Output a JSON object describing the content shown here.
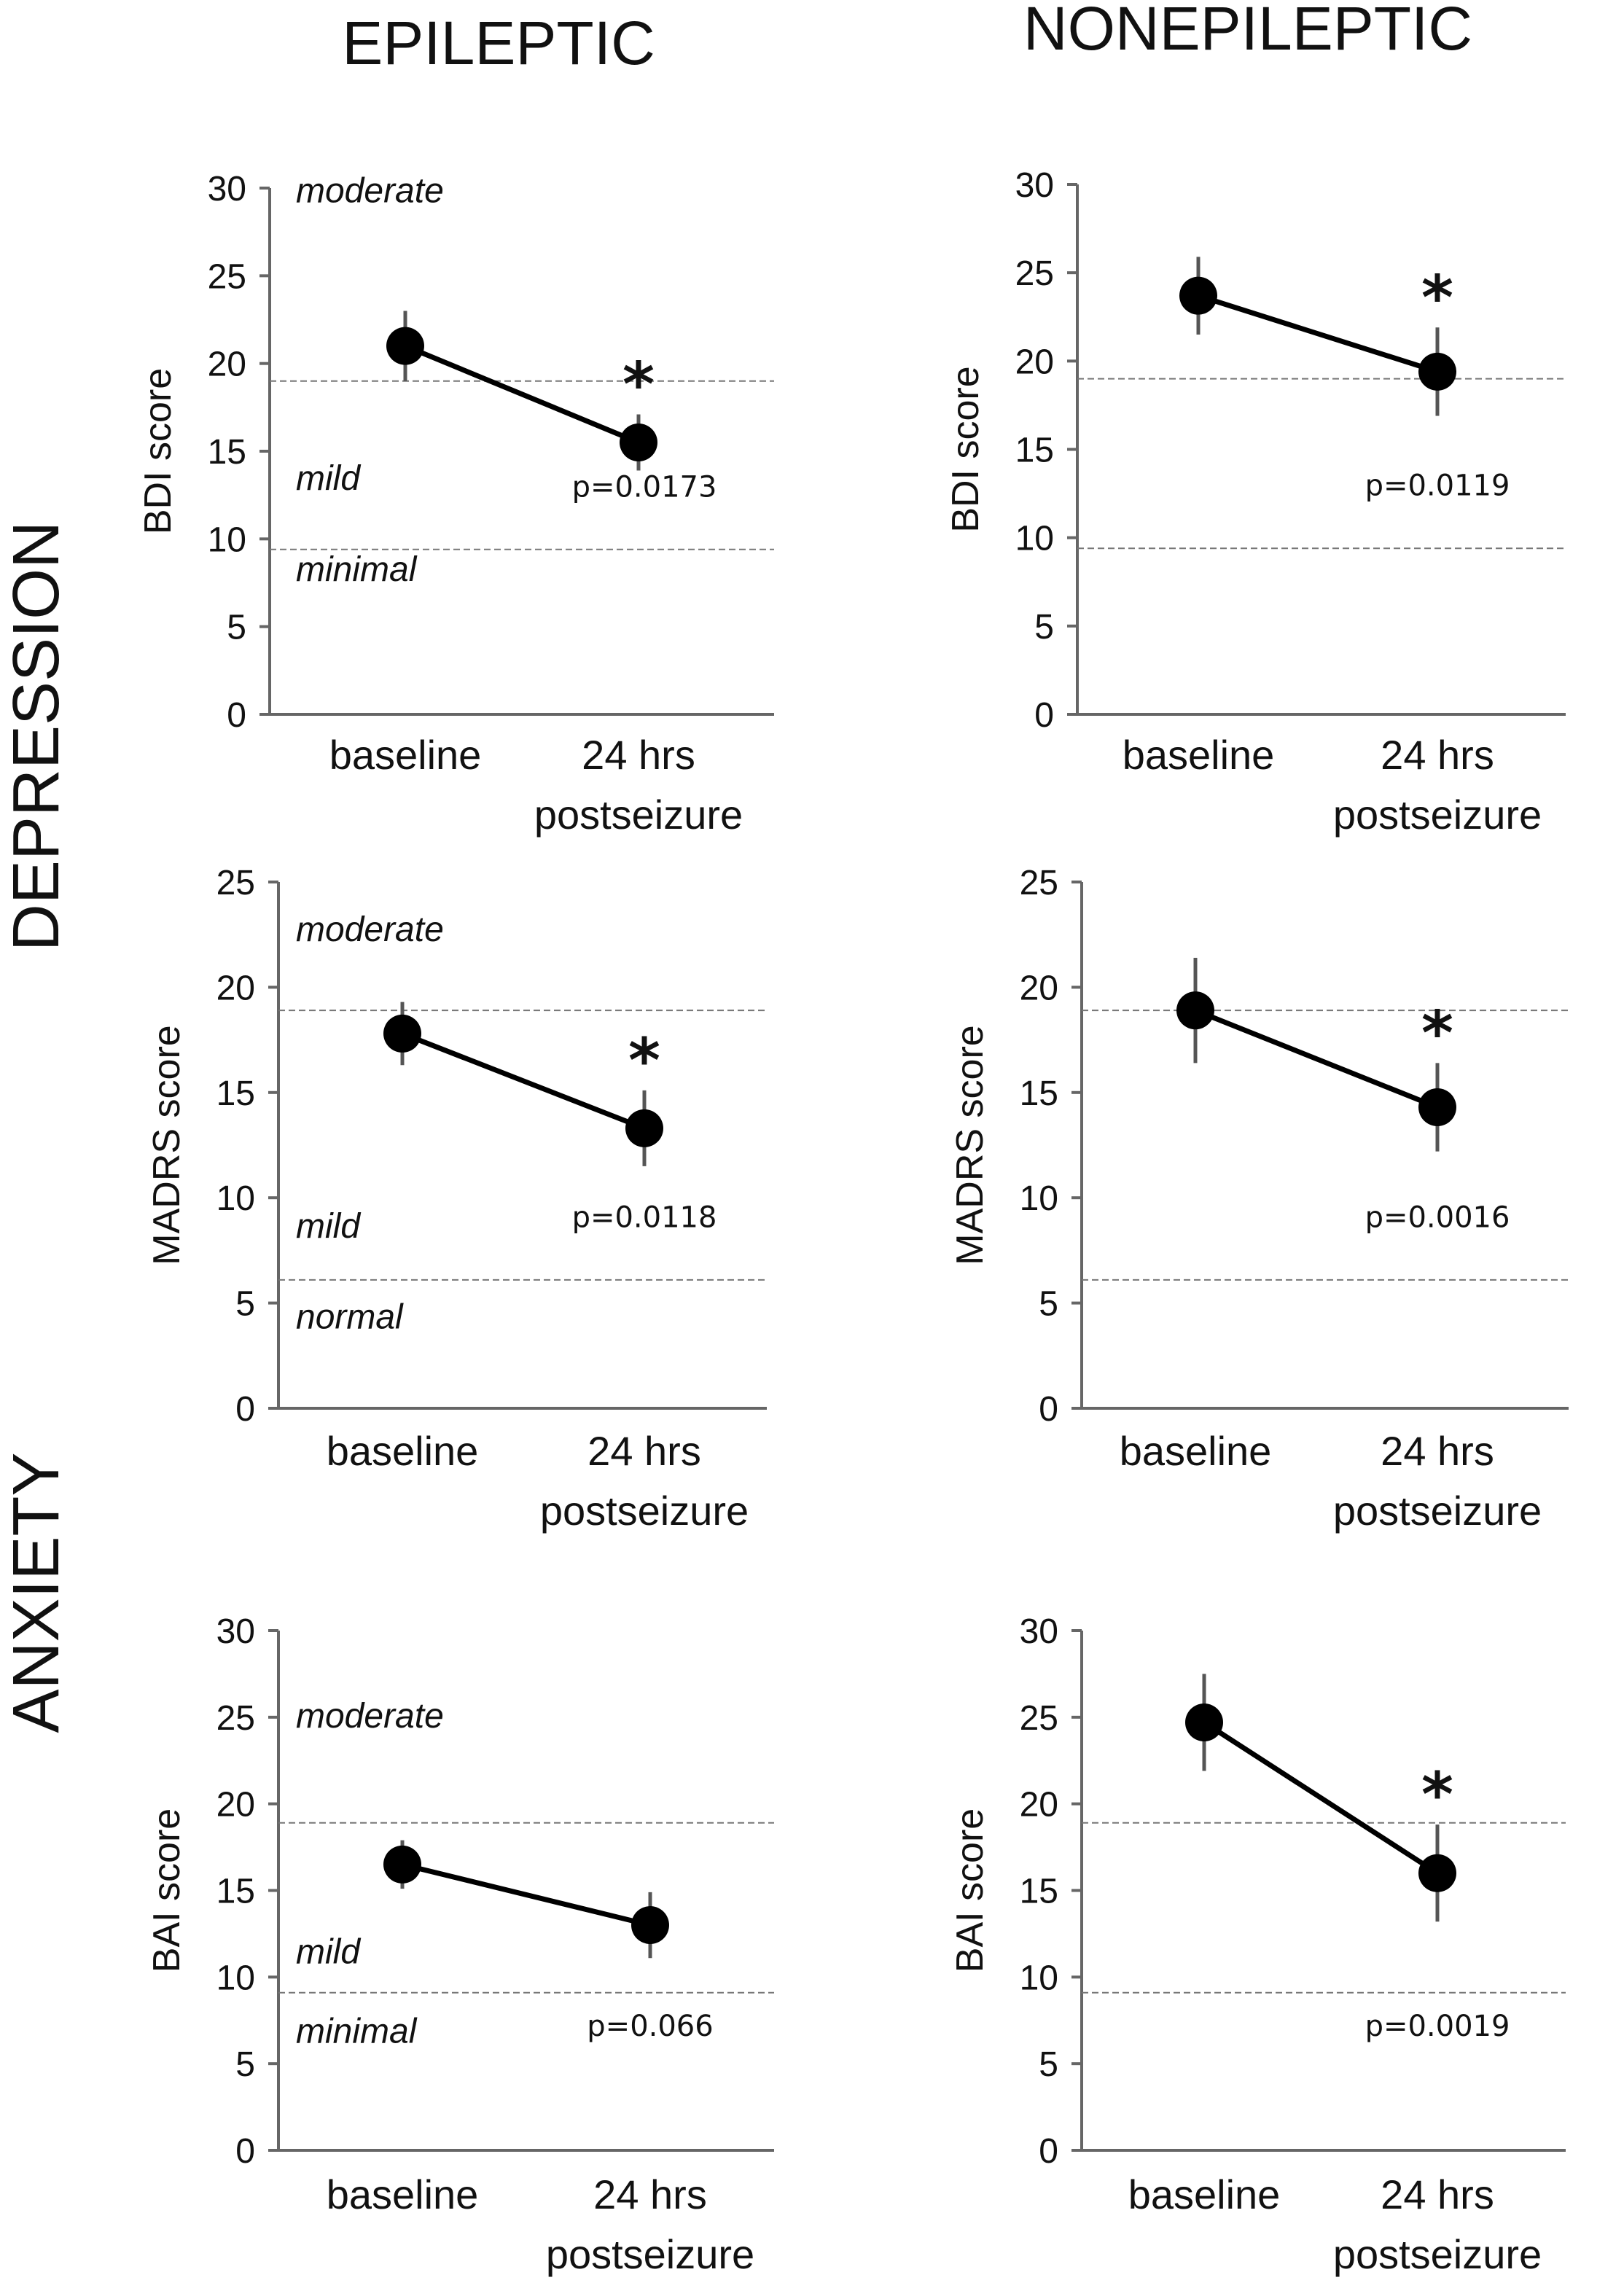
{
  "figure": {
    "column_titles": [
      "EPILEPTIC",
      "NONEPILEPTIC"
    ],
    "row_titles": [
      "DEPRESSION",
      "ANXIETY"
    ]
  },
  "chart_data": [
    {
      "type": "line",
      "id": "bdi-epileptic",
      "group": "EPILEPTIC",
      "ylabel": "BDI score",
      "ylim": [
        0,
        30
      ],
      "yticks": [
        0,
        5,
        10,
        15,
        20,
        25,
        30
      ],
      "categories": [
        "baseline",
        "24 hrs postseizure"
      ],
      "values": [
        21,
        15.5
      ],
      "error": [
        2,
        1.6
      ],
      "thresholds": [
        19,
        9.4
      ],
      "bands": [
        {
          "label": "moderate",
          "y": 29.2
        },
        {
          "label": "mild",
          "y": 12.8
        },
        {
          "label": "minimal",
          "y": 7.6
        }
      ],
      "significant": true,
      "p_value": "p=0.0173"
    },
    {
      "type": "line",
      "id": "bdi-nonepileptic",
      "group": "NONEPILEPTIC",
      "ylabel": "BDI score",
      "ylim": [
        0,
        30
      ],
      "yticks": [
        0,
        5,
        10,
        15,
        20,
        25,
        30
      ],
      "categories": [
        "baseline",
        "24 hrs postseizure"
      ],
      "values": [
        23.7,
        19.4
      ],
      "error": [
        2.2,
        2.5
      ],
      "thresholds": [
        19,
        9.4
      ],
      "bands": [],
      "significant": true,
      "p_value": "p=0.0119"
    },
    {
      "type": "line",
      "id": "madrs-epileptic",
      "group": "EPILEPTIC",
      "ylabel": "MADRS score",
      "ylim": [
        0,
        25
      ],
      "yticks": [
        0,
        5,
        10,
        15,
        20,
        25
      ],
      "categories": [
        "baseline",
        "24 hrs postseizure"
      ],
      "values": [
        17.8,
        13.3
      ],
      "error": [
        1.5,
        1.8
      ],
      "thresholds": [
        18.9,
        6.1
      ],
      "bands": [
        {
          "label": "moderate",
          "y": 22.2
        },
        {
          "label": "mild",
          "y": 8.1
        },
        {
          "label": "normal",
          "y": 3.8
        }
      ],
      "significant": true,
      "p_value": "p=0.0118"
    },
    {
      "type": "line",
      "id": "madrs-nonepileptic",
      "group": "NONEPILEPTIC",
      "ylabel": "MADRS score",
      "ylim": [
        0,
        25
      ],
      "yticks": [
        0,
        5,
        10,
        15,
        20,
        25
      ],
      "categories": [
        "baseline",
        "24 hrs postseizure"
      ],
      "values": [
        18.9,
        14.3
      ],
      "error": [
        2.5,
        2.1
      ],
      "thresholds": [
        18.9,
        6.1
      ],
      "bands": [],
      "significant": true,
      "p_value": "p=0.0016"
    },
    {
      "type": "line",
      "id": "bai-epileptic",
      "group": "EPILEPTIC",
      "ylabel": "BAI score",
      "ylim": [
        0,
        30
      ],
      "yticks": [
        0,
        5,
        10,
        15,
        20,
        25,
        30
      ],
      "categories": [
        "baseline",
        "24 hrs postseizure"
      ],
      "values": [
        16.5,
        13
      ],
      "error": [
        1.4,
        1.9
      ],
      "thresholds": [
        18.9,
        9.1
      ],
      "bands": [
        {
          "label": "moderate",
          "y": 24.4
        },
        {
          "label": "mild",
          "y": 10.8
        },
        {
          "label": "minimal",
          "y": 6.2
        }
      ],
      "significant": false,
      "p_value": "p=0.066"
    },
    {
      "type": "line",
      "id": "bai-nonepileptic",
      "group": "NONEPILEPTIC",
      "ylabel": "BAI score",
      "ylim": [
        0,
        30
      ],
      "yticks": [
        0,
        5,
        10,
        15,
        20,
        25,
        30
      ],
      "categories": [
        "baseline",
        "24 hrs postseizure"
      ],
      "values": [
        24.7,
        16
      ],
      "error": [
        2.8,
        2.8
      ],
      "thresholds": [
        18.9,
        9.1
      ],
      "bands": [],
      "significant": true,
      "p_value": "p=0.0019"
    }
  ]
}
